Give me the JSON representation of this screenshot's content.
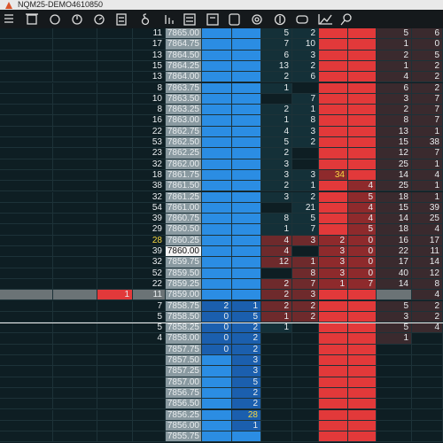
{
  "window": {
    "title": "NQM25-DEMO4610850"
  },
  "rows": [
    [
      null,
      "11",
      "7865.00",
      null,
      null,
      "5",
      "2",
      null,
      null,
      "5",
      "6"
    ],
    [
      null,
      "17",
      "7864.75",
      null,
      null,
      "7",
      "10",
      null,
      null,
      "1",
      "0"
    ],
    [
      null,
      "13",
      "7864.50",
      null,
      null,
      "6",
      "3",
      null,
      null,
      "2",
      "5"
    ],
    [
      null,
      "15",
      "7864.25",
      null,
      null,
      "13",
      "2",
      null,
      null,
      "1",
      "2"
    ],
    [
      null,
      "13",
      "7864.00",
      null,
      null,
      "2",
      "6",
      null,
      null,
      "4",
      "2"
    ],
    [
      null,
      "8",
      "7863.75",
      null,
      null,
      "1",
      null,
      null,
      null,
      "6",
      "2"
    ],
    [
      null,
      "10",
      "7863.50",
      null,
      null,
      null,
      "7",
      null,
      null,
      "3",
      "7"
    ],
    [
      null,
      "8",
      "7863.25",
      null,
      null,
      "2",
      "1",
      null,
      null,
      "2",
      "7"
    ],
    [
      null,
      "16",
      "7863.00",
      null,
      null,
      "1",
      "8",
      null,
      null,
      "8",
      "7"
    ],
    [
      null,
      "22",
      "7862.75",
      null,
      null,
      "4",
      "3",
      null,
      null,
      "13",
      "1"
    ],
    [
      null,
      "53",
      "7862.50",
      null,
      null,
      "5",
      "2",
      null,
      null,
      "15",
      "38"
    ],
    [
      null,
      "23",
      "7862.25",
      null,
      null,
      "2",
      null,
      null,
      null,
      "12",
      "7"
    ],
    [
      null,
      "32",
      "7862.00",
      null,
      null,
      "3",
      null,
      null,
      null,
      "25",
      "1"
    ],
    [
      null,
      "18",
      "7861.75",
      null,
      null,
      "3",
      "3",
      "34",
      null,
      "14",
      "4"
    ],
    [
      null,
      "38",
      "7861.50",
      null,
      null,
      "2",
      "1",
      null,
      "4",
      "25",
      "1"
    ],
    [
      null,
      "32",
      "7861.25",
      null,
      null,
      "3",
      "2",
      null,
      "5",
      "18",
      "1"
    ],
    [
      null,
      "54",
      "7861.00",
      null,
      null,
      null,
      "21",
      null,
      "4",
      "15",
      "39"
    ],
    [
      null,
      "39",
      "7860.75",
      null,
      null,
      "8",
      "5",
      null,
      "4",
      "14",
      "25"
    ],
    [
      null,
      "29",
      "7860.50",
      null,
      null,
      "1",
      "7",
      null,
      "5",
      "18",
      "4"
    ],
    [
      null,
      "28",
      "7860.25",
      null,
      null,
      "4",
      "3",
      "2",
      "0",
      "16",
      "17"
    ],
    [
      null,
      "39",
      "7860.00",
      null,
      null,
      "4",
      null,
      "3",
      "0",
      "22",
      "11"
    ],
    [
      null,
      "32",
      "7859.75",
      null,
      null,
      "12",
      "1",
      "3",
      "0",
      "17",
      "14"
    ],
    [
      null,
      "52",
      "7859.50",
      null,
      null,
      null,
      "8",
      "3",
      "0",
      "40",
      "12"
    ],
    [
      null,
      "22",
      "7859.25",
      null,
      null,
      "2",
      "7",
      "1",
      "7",
      "14",
      "8"
    ],
    [
      "1",
      "11",
      "7859.00",
      null,
      null,
      "2",
      "3",
      null,
      null,
      null,
      "4"
    ],
    [
      null,
      "7",
      "7858.75",
      "2",
      "1",
      "2",
      "2",
      null,
      null,
      "5",
      "2"
    ],
    [
      null,
      "5",
      "7858.50",
      "0",
      "5",
      "1",
      "2",
      null,
      null,
      "3",
      "2"
    ],
    [
      null,
      "5",
      "7858.25",
      "0",
      "2",
      "1",
      null,
      null,
      null,
      "5",
      "4"
    ],
    [
      null,
      "4",
      "7858.00",
      "0",
      "2",
      null,
      null,
      null,
      null,
      "1",
      null
    ],
    [
      null,
      null,
      "7857.75",
      "0",
      "2",
      null,
      null,
      null,
      null,
      null,
      null
    ],
    [
      null,
      null,
      "7857.50",
      null,
      "3",
      null,
      null,
      null,
      null,
      null,
      null
    ],
    [
      null,
      null,
      "7857.25",
      null,
      "3",
      null,
      null,
      null,
      null,
      null,
      null
    ],
    [
      null,
      null,
      "7857.00",
      null,
      "5",
      null,
      null,
      null,
      null,
      null,
      null
    ],
    [
      null,
      null,
      "7856.75",
      null,
      "2",
      null,
      null,
      null,
      null,
      null,
      null
    ],
    [
      null,
      null,
      "7856.50",
      null,
      "2",
      null,
      null,
      null,
      null,
      null,
      null
    ],
    [
      null,
      null,
      "7856.25",
      null,
      "28",
      null,
      null,
      null,
      null,
      null,
      null
    ],
    [
      null,
      null,
      "7856.00",
      null,
      "1",
      null,
      null,
      null,
      null,
      null,
      null
    ],
    [
      null,
      null,
      "7855.75",
      null,
      null,
      null,
      null,
      null,
      null,
      null,
      null
    ]
  ]
}
